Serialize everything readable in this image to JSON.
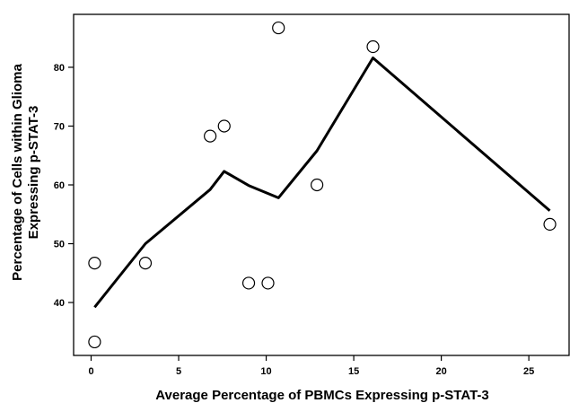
{
  "chart_data": {
    "type": "scatter",
    "title": "",
    "xlabel": "Average Percentage of PBMCs Expressing p-STAT-3",
    "ylabel_lines": [
      "Percentage of Cells within Glioma",
      "Expressing p-STAT-3"
    ],
    "xlim": [
      -1,
      27.3
    ],
    "ylim": [
      31,
      89
    ],
    "xticks": [
      0,
      5,
      10,
      15,
      20,
      25
    ],
    "yticks": [
      40,
      50,
      60,
      70,
      80
    ],
    "grid": false,
    "legend": "none",
    "points": [
      {
        "x": 0.2,
        "y": 33.3
      },
      {
        "x": 0.2,
        "y": 46.7
      },
      {
        "x": 3.1,
        "y": 46.7
      },
      {
        "x": 6.8,
        "y": 68.3
      },
      {
        "x": 7.6,
        "y": 70.0
      },
      {
        "x": 9.0,
        "y": 43.3
      },
      {
        "x": 10.1,
        "y": 43.3
      },
      {
        "x": 10.7,
        "y": 86.7
      },
      {
        "x": 12.9,
        "y": 60.0
      },
      {
        "x": 16.1,
        "y": 83.5
      },
      {
        "x": 26.2,
        "y": 53.3
      }
    ],
    "smooth_line": {
      "x": [
        0.2,
        3.1,
        6.8,
        7.6,
        9.0,
        10.7,
        12.9,
        16.1,
        26.2
      ],
      "y": [
        39.2,
        50.0,
        59.2,
        62.3,
        59.9,
        57.8,
        65.8,
        81.6,
        55.6
      ]
    },
    "colors": {
      "line": "#000000",
      "marker_edge": "#000000",
      "marker_fill": "#ffffff"
    }
  }
}
